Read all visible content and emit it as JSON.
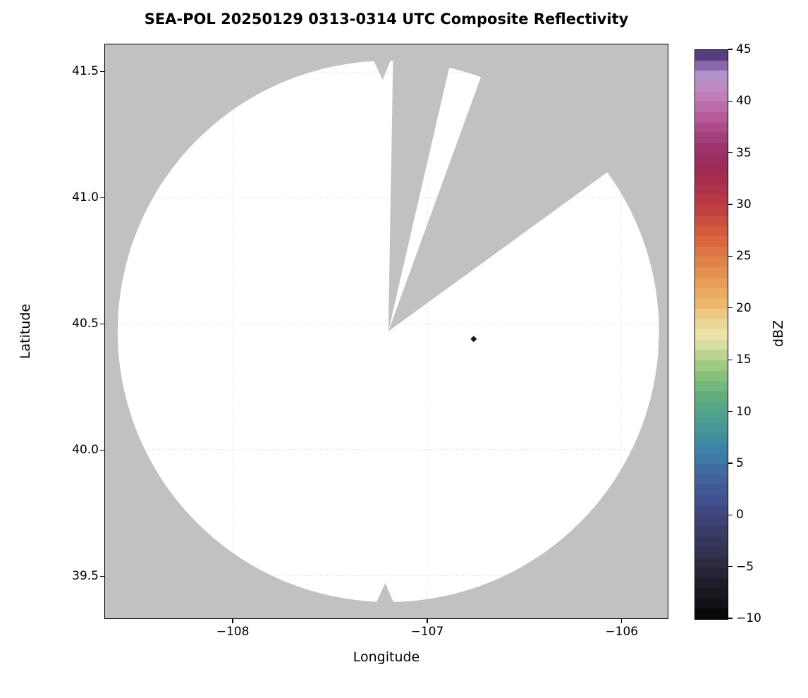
{
  "chart_data": {
    "type": "heatmap",
    "title": "SEA-POL 20250129 0313-0314 UTC Composite Reflectivity",
    "xlabel": "Longitude",
    "ylabel": "Latitude",
    "xlim": [
      -108.66,
      -105.76
    ],
    "ylim": [
      39.33,
      41.61
    ],
    "xticks": [
      -108,
      -107,
      -106
    ],
    "xtick_labels": [
      "−108",
      "−107",
      "−106"
    ],
    "yticks": [
      41.5,
      41.0,
      40.5,
      40.0,
      39.5
    ],
    "ytick_labels": [
      "41.5",
      "41.0",
      "40.5",
      "40.0",
      "39.5"
    ],
    "grid": true,
    "radar": {
      "center_lon": -107.2,
      "center_lat": 40.47,
      "range_deg_lon": 1.395,
      "range_deg_lat": 1.075,
      "coverage_color": "#ffffff",
      "background_color": "#c1c1c1",
      "missing_sectors_deg": [
        [
          1,
          13
        ],
        [
          20,
          54
        ]
      ],
      "edge_notches_az_deg": [
        358.7,
        180.7
      ]
    },
    "echoes": [
      {
        "lon": -106.76,
        "lat": 40.44,
        "dbz": -7,
        "color": "#15152a"
      }
    ],
    "colorbar": {
      "label": "dBZ",
      "min": -10,
      "max": 45,
      "ticks": [
        45,
        40,
        35,
        30,
        25,
        20,
        15,
        10,
        5,
        0,
        -5,
        -10
      ],
      "tick_labels": [
        "45",
        "40",
        "35",
        "30",
        "25",
        "20",
        "15",
        "10",
        "5",
        "0",
        "−5",
        "−10"
      ],
      "stops": [
        [
          -10,
          "#060608"
        ],
        [
          -7,
          "#1b1b25"
        ],
        [
          -4,
          "#2f2f49"
        ],
        [
          -1,
          "#3d3f6e"
        ],
        [
          1.5,
          "#42518f"
        ],
        [
          4,
          "#3f68a0"
        ],
        [
          6.5,
          "#3d83a8"
        ],
        [
          9,
          "#489d93"
        ],
        [
          11.5,
          "#5fae7b"
        ],
        [
          14,
          "#8fc47c"
        ],
        [
          16,
          "#c9da96"
        ],
        [
          17.2,
          "#eae7ae"
        ],
        [
          19,
          "#edd18d"
        ],
        [
          21,
          "#eab164"
        ],
        [
          24,
          "#e18a4b"
        ],
        [
          27,
          "#d7613c"
        ],
        [
          30,
          "#bd3a42"
        ],
        [
          33,
          "#a02b50"
        ],
        [
          35,
          "#992e64"
        ],
        [
          37,
          "#a8437f"
        ],
        [
          39,
          "#b863a0"
        ],
        [
          41,
          "#c288bf"
        ],
        [
          42.5,
          "#b391c9"
        ],
        [
          43.8,
          "#8059a5"
        ],
        [
          44.6,
          "#4f3a77"
        ],
        [
          45,
          "#201634"
        ]
      ]
    }
  }
}
